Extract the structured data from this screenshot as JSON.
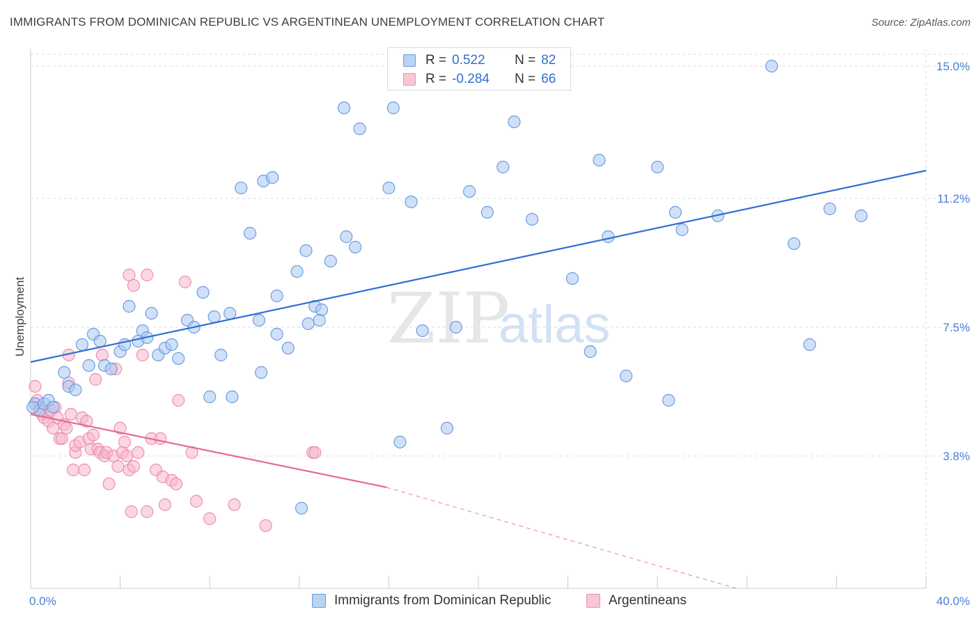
{
  "header": {
    "title": "IMMIGRANTS FROM DOMINICAN REPUBLIC VS ARGENTINEAN UNEMPLOYMENT CORRELATION CHART",
    "source": "Source: ZipAtlas.com"
  },
  "watermark": {
    "zip": "ZIP",
    "atlas": "atlas"
  },
  "legend": {
    "rows": [
      {
        "r_label": "R =",
        "r_value": "0.522",
        "n_label": "N =",
        "n_value": "82"
      },
      {
        "r_label": "R =",
        "r_value": "-0.284",
        "n_label": "N =",
        "n_value": "66"
      }
    ]
  },
  "colors": {
    "blue_fill": "#a9c8f0",
    "blue_stroke": "#6a9be0",
    "blue_line": "#2f6fd0",
    "pink_fill": "#f5b7cb",
    "pink_stroke": "#ec8fae",
    "pink_line": "#e46a96",
    "grid": "#d9dce1",
    "tick_text": "#4a7fd0"
  },
  "chart_data": {
    "type": "scatter",
    "title": "IMMIGRANTS FROM DOMINICAN REPUBLIC VS ARGENTINEAN UNEMPLOYMENT CORRELATION CHART",
    "xlabel": "",
    "ylabel": "Unemployment",
    "xlim": [
      0,
      40
    ],
    "ylim": [
      0,
      15.5
    ],
    "x_tick_labels": [
      {
        "value": 0,
        "label": "0.0%"
      },
      {
        "value": 40,
        "label": "40.0%"
      }
    ],
    "y_ticks": [
      {
        "value": 3.8,
        "label": "3.8%"
      },
      {
        "value": 7.5,
        "label": "7.5%"
      },
      {
        "value": 11.2,
        "label": "11.2%"
      },
      {
        "value": 15.0,
        "label": "15.0%"
      }
    ],
    "x_minor_ticks": [
      0,
      4,
      8,
      12,
      16,
      20,
      24,
      28,
      32,
      36,
      40
    ],
    "grid": true,
    "series": [
      {
        "name": "Immigrants from Dominican Republic",
        "color": "blue",
        "trend": {
          "x": [
            0,
            40
          ],
          "y": [
            6.5,
            12.0
          ],
          "dashed_from": null
        },
        "points": [
          [
            0.2,
            5.3
          ],
          [
            0.4,
            5.1
          ],
          [
            0.6,
            5.3
          ],
          [
            0.8,
            5.4
          ],
          [
            1.0,
            5.2
          ],
          [
            1.5,
            6.2
          ],
          [
            1.7,
            5.8
          ],
          [
            2.0,
            5.7
          ],
          [
            2.3,
            7.0
          ],
          [
            2.6,
            6.4
          ],
          [
            2.8,
            7.3
          ],
          [
            3.1,
            7.1
          ],
          [
            3.3,
            6.4
          ],
          [
            3.6,
            6.3
          ],
          [
            4.0,
            6.8
          ],
          [
            4.2,
            7.0
          ],
          [
            4.4,
            8.1
          ],
          [
            4.8,
            7.1
          ],
          [
            5.0,
            7.4
          ],
          [
            5.2,
            7.2
          ],
          [
            5.4,
            7.9
          ],
          [
            5.7,
            6.7
          ],
          [
            6.0,
            6.9
          ],
          [
            6.3,
            7.0
          ],
          [
            6.6,
            6.6
          ],
          [
            7.0,
            7.7
          ],
          [
            7.3,
            7.5
          ],
          [
            7.7,
            8.5
          ],
          [
            8.2,
            7.8
          ],
          [
            8.5,
            6.7
          ],
          [
            8.9,
            7.9
          ],
          [
            8.0,
            5.5
          ],
          [
            9.0,
            5.5
          ],
          [
            9.4,
            11.5
          ],
          [
            9.8,
            10.2
          ],
          [
            10.2,
            7.7
          ],
          [
            10.4,
            11.7
          ],
          [
            10.8,
            11.8
          ],
          [
            10.3,
            6.2
          ],
          [
            11.0,
            7.3
          ],
          [
            11.0,
            8.4
          ],
          [
            11.5,
            6.9
          ],
          [
            11.9,
            9.1
          ],
          [
            12.3,
            9.7
          ],
          [
            12.4,
            7.6
          ],
          [
            12.9,
            7.7
          ],
          [
            12.7,
            8.1
          ],
          [
            13.0,
            8.0
          ],
          [
            13.4,
            9.4
          ],
          [
            14.0,
            13.8
          ],
          [
            14.1,
            10.1
          ],
          [
            14.5,
            9.8
          ],
          [
            14.7,
            13.2
          ],
          [
            16.0,
            11.5
          ],
          [
            16.5,
            4.2
          ],
          [
            16.2,
            13.8
          ],
          [
            17.0,
            11.1
          ],
          [
            17.5,
            7.4
          ],
          [
            18.6,
            4.6
          ],
          [
            19.0,
            7.5
          ],
          [
            19.6,
            11.4
          ],
          [
            20.4,
            10.8
          ],
          [
            21.1,
            12.1
          ],
          [
            21.6,
            13.4
          ],
          [
            22.4,
            10.6
          ],
          [
            24.2,
            8.9
          ],
          [
            25.0,
            6.8
          ],
          [
            25.4,
            12.3
          ],
          [
            25.8,
            10.1
          ],
          [
            26.6,
            6.1
          ],
          [
            28.0,
            12.1
          ],
          [
            28.5,
            5.4
          ],
          [
            28.8,
            10.8
          ],
          [
            29.1,
            10.3
          ],
          [
            30.7,
            10.7
          ],
          [
            12.1,
            2.3
          ],
          [
            33.1,
            15.0
          ],
          [
            34.1,
            9.9
          ],
          [
            34.8,
            7.0
          ],
          [
            35.7,
            10.9
          ],
          [
            37.1,
            10.7
          ],
          [
            0.1,
            5.2
          ]
        ]
      },
      {
        "name": "Argentineans",
        "color": "pink",
        "trend": {
          "x": [
            0,
            15.9
          ],
          "y": [
            5.0,
            2.9
          ],
          "dashed_to": [
            31.5,
            0.0
          ]
        },
        "points": [
          [
            0.2,
            5.8
          ],
          [
            0.3,
            5.4
          ],
          [
            0.4,
            5.2
          ],
          [
            0.5,
            5.0
          ],
          [
            0.6,
            4.9
          ],
          [
            0.8,
            4.8
          ],
          [
            0.9,
            5.1
          ],
          [
            1.0,
            4.6
          ],
          [
            1.1,
            5.2
          ],
          [
            1.2,
            4.9
          ],
          [
            1.3,
            4.3
          ],
          [
            1.4,
            4.3
          ],
          [
            1.5,
            4.7
          ],
          [
            1.6,
            4.6
          ],
          [
            1.7,
            5.9
          ],
          [
            1.7,
            6.7
          ],
          [
            1.8,
            5.0
          ],
          [
            1.9,
            3.4
          ],
          [
            2.0,
            3.9
          ],
          [
            2.0,
            4.1
          ],
          [
            2.2,
            4.2
          ],
          [
            2.3,
            4.9
          ],
          [
            2.4,
            3.4
          ],
          [
            2.5,
            4.8
          ],
          [
            2.6,
            4.3
          ],
          [
            2.7,
            4.0
          ],
          [
            2.8,
            4.4
          ],
          [
            2.9,
            6.0
          ],
          [
            3.0,
            4.0
          ],
          [
            3.1,
            3.9
          ],
          [
            3.2,
            6.7
          ],
          [
            3.3,
            3.8
          ],
          [
            3.4,
            3.9
          ],
          [
            3.5,
            3.0
          ],
          [
            3.7,
            3.8
          ],
          [
            3.8,
            6.3
          ],
          [
            3.9,
            3.5
          ],
          [
            4.0,
            4.6
          ],
          [
            4.1,
            3.9
          ],
          [
            4.2,
            4.2
          ],
          [
            4.3,
            3.8
          ],
          [
            4.4,
            3.4
          ],
          [
            4.5,
            2.2
          ],
          [
            4.6,
            3.5
          ],
          [
            4.8,
            3.9
          ],
          [
            5.0,
            6.7
          ],
          [
            5.2,
            9.0
          ],
          [
            4.4,
            9.0
          ],
          [
            4.6,
            8.7
          ],
          [
            5.2,
            2.2
          ],
          [
            5.4,
            4.3
          ],
          [
            5.6,
            3.4
          ],
          [
            5.8,
            4.3
          ],
          [
            5.9,
            3.2
          ],
          [
            6.0,
            2.4
          ],
          [
            6.3,
            3.1
          ],
          [
            6.5,
            3.0
          ],
          [
            6.6,
            5.4
          ],
          [
            6.9,
            8.8
          ],
          [
            7.2,
            3.9
          ],
          [
            7.4,
            2.5
          ],
          [
            8.0,
            2.0
          ],
          [
            9.1,
            2.4
          ],
          [
            10.5,
            1.8
          ],
          [
            12.6,
            3.9
          ],
          [
            12.7,
            3.9
          ]
        ]
      }
    ]
  },
  "bottom_legend": {
    "items": [
      {
        "label": "Immigrants from Dominican Republic"
      },
      {
        "label": "Argentineans"
      }
    ]
  }
}
